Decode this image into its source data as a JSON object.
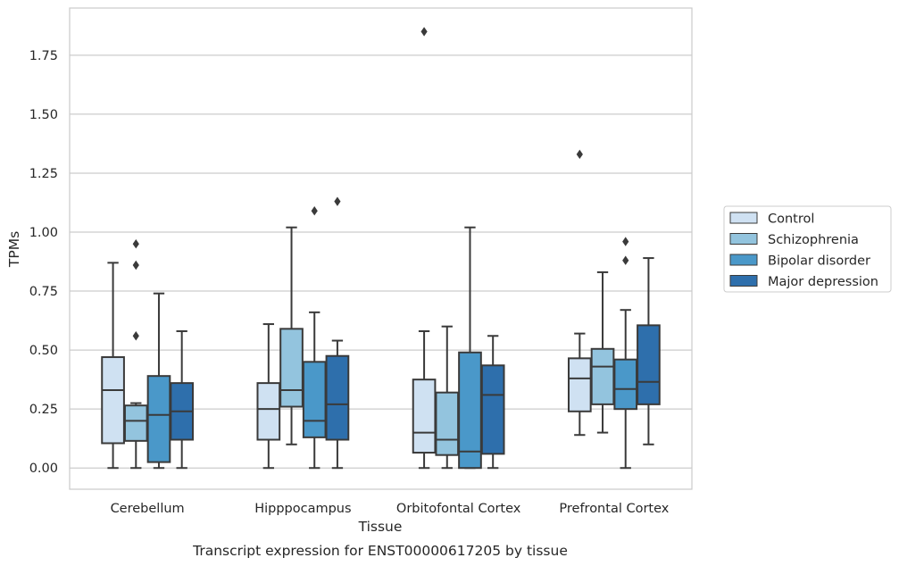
{
  "caption": "Transcript expression for ENST00000617205 by tissue",
  "chart_data": {
    "type": "boxplot",
    "xlabel": "Tissue",
    "ylabel": "TPMs",
    "ylim": [
      -0.09,
      1.95
    ],
    "yticks": [
      0.0,
      0.25,
      0.5,
      0.75,
      1.0,
      1.25,
      1.5,
      1.75
    ],
    "ytick_labels": [
      "0.00",
      "0.25",
      "0.50",
      "0.75",
      "1.00",
      "1.25",
      "1.50",
      "1.75"
    ],
    "grid": "horizontal",
    "legend_position": "right",
    "categories": [
      "Cerebellum",
      "Hipppocampus",
      "Orbitofontal Cortex",
      "Prefrontal Cortex"
    ],
    "series": [
      {
        "name": "Control",
        "color": "#cfe1f2",
        "boxes": [
          {
            "whislo": 0.0,
            "q1": 0.105,
            "med": 0.33,
            "q3": 0.47,
            "whishi": 0.87,
            "fliers": []
          },
          {
            "whislo": 0.0,
            "q1": 0.12,
            "med": 0.25,
            "q3": 0.36,
            "whishi": 0.61,
            "fliers": []
          },
          {
            "whislo": 0.0,
            "q1": 0.065,
            "med": 0.15,
            "q3": 0.375,
            "whishi": 0.58,
            "fliers": [
              1.85
            ]
          },
          {
            "whislo": 0.14,
            "q1": 0.24,
            "med": 0.38,
            "q3": 0.465,
            "whishi": 0.57,
            "fliers": [
              1.33
            ]
          }
        ]
      },
      {
        "name": "Schizophrenia",
        "color": "#93c4de",
        "boxes": [
          {
            "whislo": 0.0,
            "q1": 0.115,
            "med": 0.2,
            "q3": 0.265,
            "whishi": 0.275,
            "fliers": [
              0.95,
              0.86,
              0.56
            ]
          },
          {
            "whislo": 0.1,
            "q1": 0.26,
            "med": 0.33,
            "q3": 0.59,
            "whishi": 1.02,
            "fliers": []
          },
          {
            "whislo": 0.0,
            "q1": 0.055,
            "med": 0.12,
            "q3": 0.32,
            "whishi": 0.6,
            "fliers": []
          },
          {
            "whislo": 0.15,
            "q1": 0.27,
            "med": 0.43,
            "q3": 0.505,
            "whishi": 0.83,
            "fliers": []
          }
        ]
      },
      {
        "name": "Bipolar disorder",
        "color": "#4a98c9",
        "boxes": [
          {
            "whislo": 0.0,
            "q1": 0.025,
            "med": 0.225,
            "q3": 0.39,
            "whishi": 0.74,
            "fliers": []
          },
          {
            "whislo": 0.0,
            "q1": 0.13,
            "med": 0.2,
            "q3": 0.45,
            "whishi": 0.66,
            "fliers": [
              1.09
            ]
          },
          {
            "whislo": 0.0,
            "q1": 0.0,
            "med": 0.07,
            "q3": 0.49,
            "whishi": 1.02,
            "fliers": []
          },
          {
            "whislo": 0.0,
            "q1": 0.25,
            "med": 0.335,
            "q3": 0.46,
            "whishi": 0.67,
            "fliers": [
              0.96,
              0.88
            ]
          }
        ]
      },
      {
        "name": "Major depression",
        "color": "#2e6fac",
        "boxes": [
          {
            "whislo": 0.0,
            "q1": 0.12,
            "med": 0.24,
            "q3": 0.36,
            "whishi": 0.58,
            "fliers": []
          },
          {
            "whislo": 0.0,
            "q1": 0.12,
            "med": 0.27,
            "q3": 0.475,
            "whishi": 0.54,
            "fliers": [
              1.13
            ]
          },
          {
            "whislo": 0.0,
            "q1": 0.06,
            "med": 0.31,
            "q3": 0.435,
            "whishi": 0.56,
            "fliers": []
          },
          {
            "whislo": 0.1,
            "q1": 0.27,
            "med": 0.365,
            "q3": 0.605,
            "whishi": 0.89,
            "fliers": []
          }
        ]
      }
    ]
  }
}
